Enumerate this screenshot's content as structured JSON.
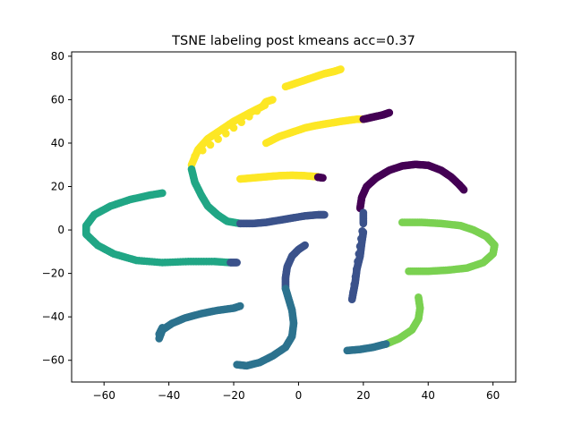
{
  "chart_data": {
    "type": "scatter",
    "title": "TSNE labeling post kmeans acc=0.37",
    "xlabel": "",
    "ylabel": "",
    "xlim": [
      -70,
      67
    ],
    "ylim": [
      -70,
      82
    ],
    "xticks": [
      -60,
      -40,
      -20,
      0,
      20,
      40,
      60
    ],
    "yticks": [
      -60,
      -40,
      -20,
      0,
      20,
      40,
      60,
      80
    ],
    "grid": false,
    "legend": "none",
    "marker_colors": {
      "purple": "#440154",
      "indigo": "#3b528b",
      "teal_blue": "#2c728e",
      "green_teal": "#21a685",
      "light_green": "#7ad151",
      "yellow": "#fde725"
    },
    "series": [
      {
        "color": "yellow",
        "points": [
          [
            -33,
            30
          ],
          [
            -31,
            37
          ],
          [
            -28,
            42
          ],
          [
            -24,
            46
          ],
          [
            -20,
            50
          ],
          [
            -15,
            54
          ],
          [
            -11,
            57
          ],
          [
            -10,
            59
          ],
          [
            -8,
            60
          ],
          [
            -32,
            34
          ]
        ]
      },
      {
        "color": "yellow",
        "points": [
          [
            -4,
            66
          ],
          [
            0,
            68
          ],
          [
            4,
            70
          ],
          [
            8,
            72
          ],
          [
            11,
            73
          ],
          [
            13,
            74
          ]
        ]
      },
      {
        "color": "yellow",
        "points": [
          [
            -10,
            40
          ],
          [
            -6,
            43
          ],
          [
            -2,
            45
          ],
          [
            2,
            47
          ],
          [
            5,
            48
          ],
          [
            9,
            49
          ],
          [
            13,
            50
          ],
          [
            18,
            51
          ],
          [
            20,
            51
          ]
        ]
      },
      {
        "color": "purple",
        "points": [
          [
            20,
            51
          ],
          [
            23,
            52
          ],
          [
            26,
            53
          ],
          [
            28,
            54
          ]
        ]
      },
      {
        "color": "yellow",
        "points": [
          [
            -18,
            23.5
          ],
          [
            -14,
            24
          ],
          [
            -10,
            24.5
          ],
          [
            -6,
            25
          ],
          [
            -2,
            25.2
          ],
          [
            2,
            25
          ],
          [
            6,
            24.5
          ]
        ]
      },
      {
        "color": "purple",
        "points": [
          [
            6,
            24.3
          ],
          [
            7.5,
            24
          ]
        ]
      },
      {
        "color": "purple",
        "points": [
          [
            19,
            10
          ],
          [
            19.5,
            15
          ],
          [
            21,
            20
          ],
          [
            24,
            24
          ],
          [
            28,
            27.5
          ],
          [
            32,
            29.5
          ],
          [
            36,
            30.2
          ],
          [
            40,
            29.8
          ],
          [
            44,
            27.5
          ],
          [
            47,
            24.5
          ],
          [
            49.5,
            21
          ],
          [
            51,
            18.5
          ]
        ]
      },
      {
        "color": "green_teal",
        "points": [
          [
            -33,
            28
          ],
          [
            -32,
            22
          ],
          [
            -30,
            16
          ],
          [
            -28,
            11
          ],
          [
            -25,
            7
          ],
          [
            -22,
            4
          ],
          [
            -18,
            3
          ]
        ]
      },
      {
        "color": "indigo",
        "points": [
          [
            -18,
            3
          ],
          [
            -14,
            3
          ],
          [
            -10,
            3.5
          ],
          [
            -6,
            4.5
          ],
          [
            -2,
            5.5
          ],
          [
            2,
            6.5
          ],
          [
            6,
            7
          ],
          [
            8,
            7
          ]
        ]
      },
      {
        "color": "green_teal",
        "points": [
          [
            -42,
            17
          ],
          [
            -46,
            16
          ],
          [
            -52,
            14
          ],
          [
            -58,
            11
          ],
          [
            -63,
            7
          ],
          [
            -65.5,
            2
          ],
          [
            -65.5,
            -2
          ],
          [
            -62,
            -7
          ],
          [
            -57,
            -11
          ],
          [
            -50,
            -14
          ],
          [
            -42,
            -15
          ],
          [
            -34,
            -14.5
          ],
          [
            -26,
            -14.5
          ],
          [
            -21,
            -15
          ]
        ]
      },
      {
        "color": "indigo",
        "points": [
          [
            -21,
            -15
          ],
          [
            -19,
            -15
          ]
        ]
      },
      {
        "color": "indigo",
        "points": [
          [
            2,
            -7
          ],
          [
            0,
            -9
          ],
          [
            -2,
            -12
          ],
          [
            -3.5,
            -17
          ],
          [
            -4,
            -22
          ],
          [
            -4,
            -27
          ]
        ]
      },
      {
        "color": "teal_blue",
        "points": [
          [
            -4,
            -27
          ],
          [
            -3,
            -32
          ],
          [
            -2,
            -37
          ],
          [
            -1.5,
            -43
          ],
          [
            -2,
            -49
          ],
          [
            -4,
            -54
          ],
          [
            -8,
            -58
          ],
          [
            -12,
            -61
          ],
          [
            -16,
            -62.5
          ],
          [
            -19,
            -62
          ]
        ]
      },
      {
        "color": "indigo",
        "points": [
          [
            20,
            -1
          ],
          [
            19.5,
            -6
          ],
          [
            19,
            -12
          ],
          [
            18,
            -18
          ],
          [
            17.5,
            -24
          ],
          [
            17,
            -28
          ],
          [
            16.5,
            -32
          ],
          [
            20,
            3
          ],
          [
            20,
            8
          ]
        ]
      },
      {
        "color": "light_green",
        "points": [
          [
            32,
            3.5
          ],
          [
            38,
            3.5
          ],
          [
            44,
            3
          ],
          [
            50,
            2
          ],
          [
            54,
            0
          ],
          [
            58,
            -3
          ],
          [
            60.5,
            -7
          ],
          [
            60,
            -11
          ],
          [
            57,
            -15
          ],
          [
            52,
            -17.5
          ],
          [
            46,
            -18.5
          ],
          [
            40,
            -19
          ],
          [
            34,
            -19
          ]
        ]
      },
      {
        "color": "light_green",
        "points": [
          [
            37,
            -31
          ],
          [
            37.5,
            -36
          ],
          [
            37,
            -41
          ],
          [
            35,
            -46
          ],
          [
            31,
            -50
          ],
          [
            27,
            -52.5
          ]
        ]
      },
      {
        "color": "teal_blue",
        "points": [
          [
            27,
            -52.5
          ],
          [
            23,
            -54
          ],
          [
            19,
            -55
          ],
          [
            15,
            -55.5
          ]
        ]
      },
      {
        "color": "teal_blue",
        "points": [
          [
            -43,
            -50
          ],
          [
            -42,
            -46
          ],
          [
            -39,
            -43
          ],
          [
            -35,
            -40.5
          ],
          [
            -30,
            -38.5
          ],
          [
            -25,
            -37
          ],
          [
            -20,
            -36
          ],
          [
            -18,
            -35
          ]
        ]
      },
      {
        "color": "teal_blue",
        "points": [
          [
            -43,
            -48
          ],
          [
            -42,
            -45
          ]
        ]
      }
    ]
  }
}
